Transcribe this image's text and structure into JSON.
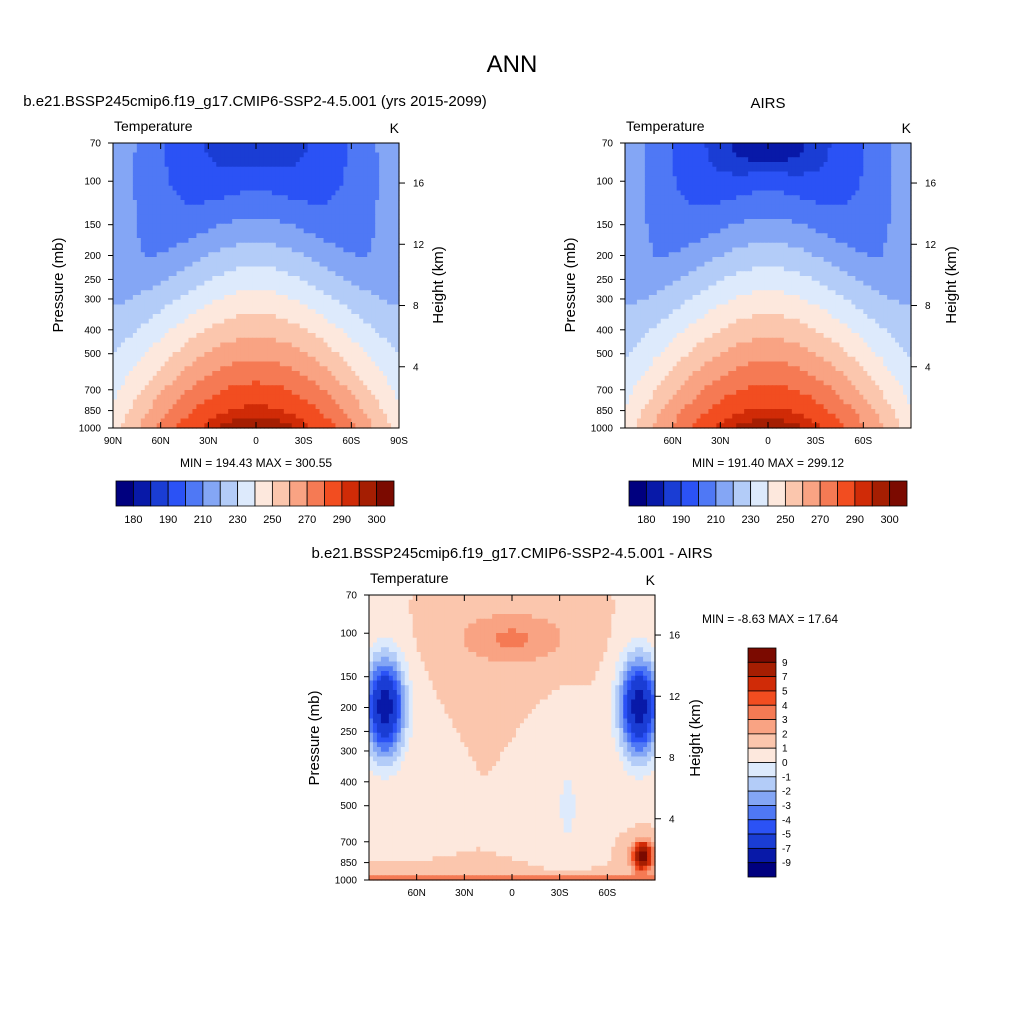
{
  "page": {
    "title": "ANN"
  },
  "palette": {
    "abs": [
      "#00007f",
      "#0819a8",
      "#1a3dd4",
      "#2b52f5",
      "#4f78f5",
      "#84a6f5",
      "#b3ccf8",
      "#ddeafc",
      "#fde8dd",
      "#fbc6ad",
      "#f9a383",
      "#f57a54",
      "#f24d20",
      "#d02b07",
      "#a51e02",
      "#7b0a00"
    ],
    "diff": [
      "#00007f",
      "#0819a8",
      "#1a3dd4",
      "#2b52f5",
      "#4f78f5",
      "#84a6f5",
      "#b3ccf8",
      "#ddeafc",
      "#fde8dd",
      "#fbc6ad",
      "#f9a383",
      "#f57a54",
      "#f24d20",
      "#d02b07",
      "#a51e02",
      "#7b0a00"
    ]
  },
  "chart_data": [
    {
      "id": "model",
      "type": "heatmap",
      "title": "b.e21.BSSP245cmip6.f19_g17.CMIP6-SSP2-4.5.001 (yrs 2015-2099)",
      "left_label": "Temperature",
      "right_label": "K",
      "ylabel": "Pressure (mb)",
      "ylabel2": "Height (km)",
      "x_ticks": [
        "90N",
        "60N",
        "30N",
        "0",
        "30S",
        "60S",
        "90S"
      ],
      "x_tick_values": [
        90,
        60,
        30,
        0,
        -30,
        -60,
        -90
      ],
      "xlim": [
        90,
        -90
      ],
      "y_ticks": [
        "70",
        "100",
        "150",
        "200",
        "250",
        "300",
        "400",
        "500",
        "700",
        "850",
        "1000"
      ],
      "y_tick_values": [
        70,
        100,
        150,
        200,
        250,
        300,
        400,
        500,
        700,
        850,
        1000
      ],
      "ylim": [
        70,
        1000
      ],
      "y2_ticks": [
        "4",
        "8",
        "12",
        "16"
      ],
      "y2_tick_values": [
        4,
        8,
        12,
        16
      ],
      "stats": "MIN = 194.43  MAX = 300.55",
      "min": 194.43,
      "max": 300.55,
      "colorbar": "horizontal",
      "colorbar_labels": [
        "180",
        "190",
        "210",
        "230",
        "250",
        "270",
        "290",
        "300"
      ],
      "levels": [
        180,
        185,
        190,
        200,
        210,
        220,
        230,
        240,
        250,
        260,
        270,
        280,
        290,
        295,
        300
      ],
      "model": {
        "surface": 300,
        "tropopause_strength": 15,
        "polar_hot": 0
      }
    },
    {
      "id": "obs",
      "type": "heatmap",
      "title": "AIRS",
      "left_label": "Temperature",
      "right_label": "K",
      "ylabel": "Pressure (mb)",
      "ylabel2": "Height (km)",
      "x_ticks": [
        "60N",
        "30N",
        "0",
        "30S",
        "60S"
      ],
      "x_tick_values": [
        60,
        30,
        0,
        -30,
        -60
      ],
      "xlim": [
        90,
        -90
      ],
      "y_ticks": [
        "70",
        "100",
        "150",
        "200",
        "250",
        "300",
        "400",
        "500",
        "700",
        "850",
        "1000"
      ],
      "y_tick_values": [
        70,
        100,
        150,
        200,
        250,
        300,
        400,
        500,
        700,
        850,
        1000
      ],
      "ylim": [
        70,
        1000
      ],
      "y2_ticks": [
        "4",
        "8",
        "12",
        "16"
      ],
      "y2_tick_values": [
        4,
        8,
        12,
        16
      ],
      "stats": "MIN = 191.40  MAX = 299.12",
      "min": 191.4,
      "max": 299.12,
      "colorbar": "horizontal",
      "colorbar_labels": [
        "180",
        "190",
        "210",
        "230",
        "250",
        "270",
        "290",
        "300"
      ],
      "levels": [
        180,
        185,
        190,
        200,
        210,
        220,
        230,
        240,
        250,
        260,
        270,
        280,
        290,
        295,
        300
      ],
      "model": {
        "surface": 299,
        "tropopause_strength": 18,
        "polar_hot": 0
      }
    },
    {
      "id": "diff",
      "type": "heatmap",
      "title": "b.e21.BSSP245cmip6.f19_g17.CMIP6-SSP2-4.5.001 - AIRS",
      "left_label": "Temperature",
      "right_label": "K",
      "ylabel": "Pressure (mb)",
      "ylabel2": "Height (km)",
      "x_ticks": [
        "60N",
        "30N",
        "0",
        "30S",
        "60S"
      ],
      "x_tick_values": [
        60,
        30,
        0,
        -30,
        -60
      ],
      "xlim": [
        90,
        -90
      ],
      "y_ticks": [
        "70",
        "100",
        "150",
        "200",
        "250",
        "300",
        "400",
        "500",
        "700",
        "850",
        "1000"
      ],
      "y_tick_values": [
        70,
        100,
        150,
        200,
        250,
        300,
        400,
        500,
        700,
        850,
        1000
      ],
      "ylim": [
        70,
        1000
      ],
      "y2_ticks": [
        "4",
        "8",
        "12",
        "16"
      ],
      "y2_tick_values": [
        4,
        8,
        12,
        16
      ],
      "stats": "MIN =  -8.63  MAX =  17.64",
      "min": -8.63,
      "max": 17.64,
      "colorbar": "vertical",
      "colorbar_labels": [
        "9",
        "7",
        "5",
        "4",
        "3",
        "2",
        "1",
        "0",
        "-1",
        "-2",
        "-3",
        "-4",
        "-5",
        "-7",
        "-9"
      ],
      "levels": [
        -9,
        -7,
        -5,
        -4,
        -3,
        -2,
        -1,
        0,
        1,
        2,
        3,
        4,
        5,
        7,
        9
      ]
    }
  ]
}
